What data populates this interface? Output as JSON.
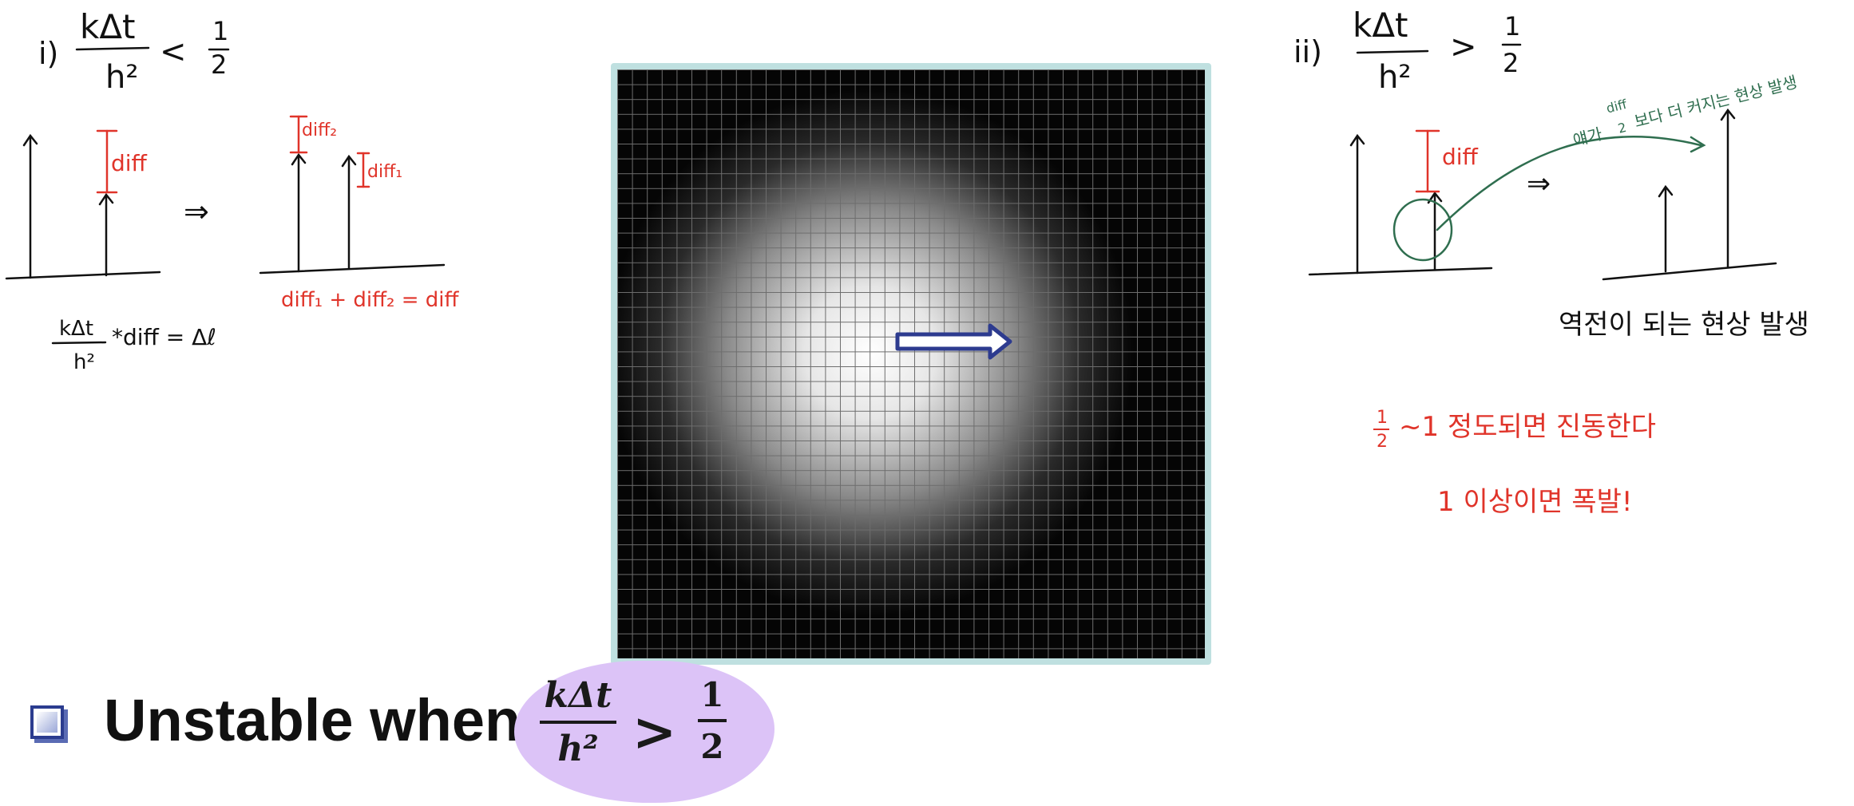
{
  "left_note": {
    "case_label": "i)",
    "num": "kΔt",
    "den": "h²",
    "relation": "<",
    "half_num": "1",
    "half_den": "2",
    "diff": "diff",
    "diff1": "diff₁",
    "diff2": "diff₂",
    "arrow": "⇒",
    "sum_eq": "diff₁ + diff₂ = diff",
    "bottom_num": "kΔt",
    "bottom_den": "h²",
    "bottom_rest": "*diff = Δℓ"
  },
  "right_note": {
    "case_label": "ii)",
    "num": "kΔt",
    "den": "h²",
    "relation": ">",
    "half_num": "1",
    "half_den": "2",
    "diff": "diff",
    "arrow": "⇒",
    "green_prefix": "얘가",
    "green_frac_num": "diff",
    "green_frac_den": "2",
    "green_suffix": "보다 더 커지는 현상 발생",
    "reversal": "역전이 되는 현상 발생",
    "red_line1_frac_num": "1",
    "red_line1_frac_den": "2",
    "red_line1_rest": "~1 정도되면 진동한다",
    "red_line2": "1 이상이면 폭발!"
  },
  "bottom": {
    "label": "Unstable when",
    "f_num": "kΔt",
    "f_den": "h²",
    "f_rel": ">",
    "f_half_num": "1",
    "f_half_den": "2"
  },
  "colors": {
    "ink": "#111111",
    "red": "#e0342a",
    "green": "#2f6e4f",
    "frame": "#bfe0e0",
    "arrow_fill": "#ffffff",
    "arrow_stroke": "#2d3b8f",
    "highlight": "#dcc3f7"
  }
}
